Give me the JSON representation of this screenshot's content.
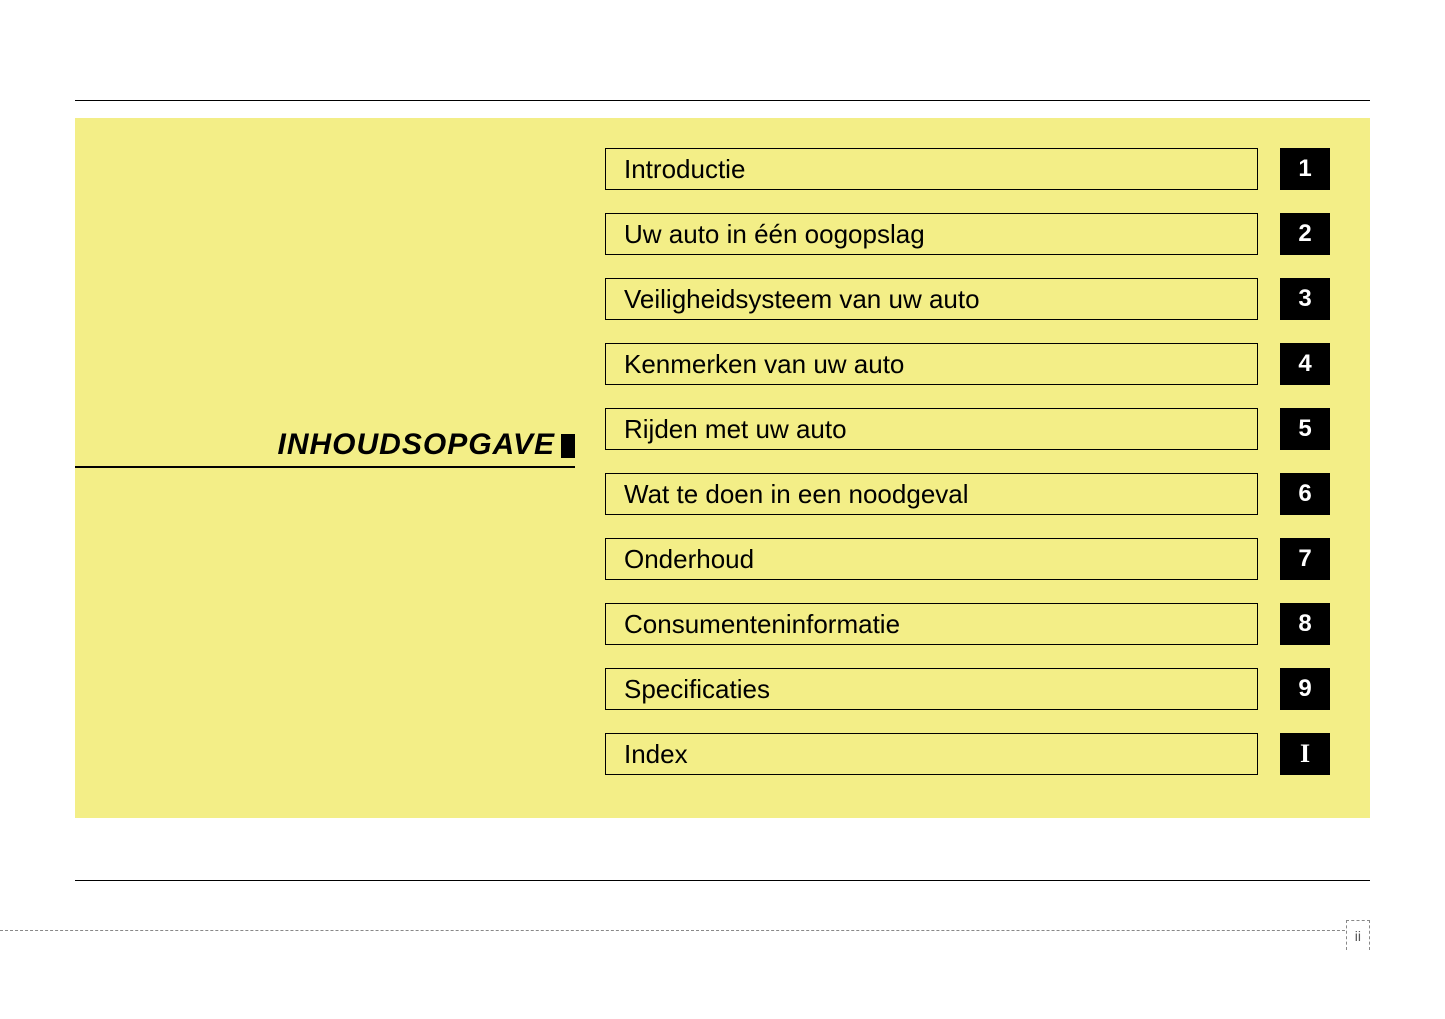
{
  "page": {
    "background_color": "#ffffff",
    "panel_color": "#f3ee87",
    "rule_color": "#000000",
    "dash_color": "#888888"
  },
  "heading": {
    "text": "INHOUDSOPGAVE",
    "font_style": "italic",
    "font_weight": 900,
    "font_size_pt": 22,
    "color": "#000000"
  },
  "toc": {
    "item_border_color": "#000000",
    "item_font_size_pt": 19,
    "num_bg": "#000000",
    "num_fg": "#ffffff",
    "num_font_size_pt": 18,
    "items": [
      {
        "label": "Introductie",
        "num": "1"
      },
      {
        "label": "Uw auto in één oogopslag",
        "num": "2"
      },
      {
        "label": "Veiligheidsysteem van uw auto",
        "num": "3"
      },
      {
        "label": "Kenmerken van uw auto",
        "num": "4"
      },
      {
        "label": "Rijden met uw auto",
        "num": "5"
      },
      {
        "label": "Wat te doen in een noodgeval",
        "num": "6"
      },
      {
        "label": "Onderhoud",
        "num": "7"
      },
      {
        "label": "Consumenteninformatie",
        "num": "8"
      },
      {
        "label": "Specificaties",
        "num": "9"
      },
      {
        "label": "Index",
        "num": "I",
        "num_serif": true
      }
    ]
  },
  "footer": {
    "page_number": "ii",
    "page_number_color": "#555555",
    "page_number_font_size_pt": 10
  }
}
